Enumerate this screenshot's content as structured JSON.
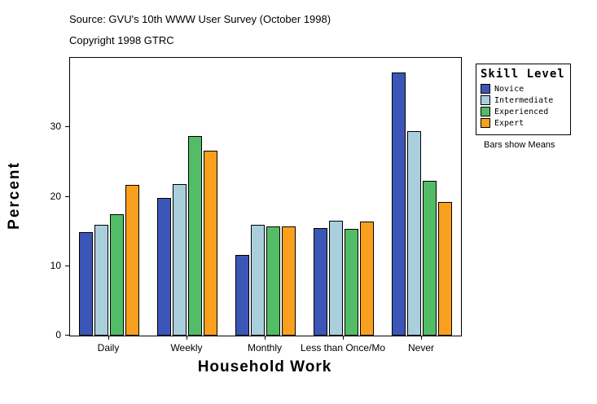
{
  "header": {
    "source_line": "Source: GVU's 10th WWW User Survey (October 1998)",
    "copyright_line": "Copyright 1998 GTRC"
  },
  "chart_data": {
    "type": "bar",
    "title": "",
    "xlabel": "Household Work",
    "ylabel": "Percent",
    "ylim": [
      0,
      40
    ],
    "yticks": [
      0,
      10,
      20,
      30
    ],
    "grid": false,
    "categories": [
      "Daily",
      "Weekly",
      "Monthly",
      "Less than Once/Mo",
      "Never"
    ],
    "series": [
      {
        "name": "Novice",
        "color": "#3c56b8",
        "values": [
          14.9,
          19.8,
          11.6,
          15.5,
          37.9
        ]
      },
      {
        "name": "Intermediate",
        "color": "#aacfdc",
        "values": [
          16.0,
          21.8,
          16.0,
          16.5,
          29.4
        ]
      },
      {
        "name": "Experienced",
        "color": "#52bd66",
        "values": [
          17.5,
          28.7,
          15.7,
          15.4,
          22.3
        ]
      },
      {
        "name": "Expert",
        "color": "#f9a01e",
        "values": [
          21.7,
          26.6,
          15.7,
          16.4,
          19.2
        ]
      }
    ],
    "legend": {
      "title": "Skill Level",
      "note": "Bars show Means",
      "position": "right"
    }
  }
}
